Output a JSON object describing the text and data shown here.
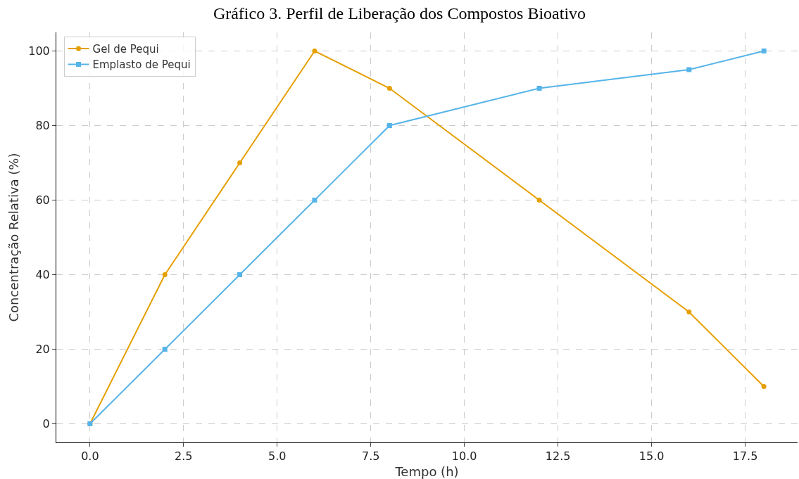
{
  "chart_data": {
    "type": "line",
    "title": "Gráfico 3. Perfil de Liberação dos Compostos Bioativo",
    "xlabel": "Tempo (h)",
    "ylabel": "Concentração Relativa (%)",
    "x": [
      0,
      2,
      4,
      6,
      8,
      12,
      16,
      18
    ],
    "series": [
      {
        "name": "Gel de Pequi",
        "color": "#e69f00",
        "values": [
          0,
          40,
          70,
          100,
          90,
          60,
          30,
          10
        ],
        "marker": "circle"
      },
      {
        "name": "Emplasto de Pequi",
        "color": "#56b4e9",
        "values": [
          0,
          20,
          40,
          60,
          80,
          90,
          95,
          100
        ],
        "marker": "square"
      }
    ],
    "xlim": [
      -0.9,
      18.9
    ],
    "xticks": [
      {
        "value": 0,
        "label": "0.0"
      },
      {
        "value": 2.5,
        "label": "2.5"
      },
      {
        "value": 5,
        "label": "5.0"
      },
      {
        "value": 7.5,
        "label": "7.5"
      },
      {
        "value": 10,
        "label": "10.0"
      },
      {
        "value": 12.5,
        "label": "12.5"
      },
      {
        "value": 15,
        "label": "15.0"
      },
      {
        "value": 17.5,
        "label": "17.5"
      }
    ],
    "ylim": [
      -5,
      105
    ],
    "yticks": [
      0,
      20,
      40,
      60,
      80,
      100
    ],
    "grid": true,
    "legend": "top left",
    "line_style": "solid"
  }
}
